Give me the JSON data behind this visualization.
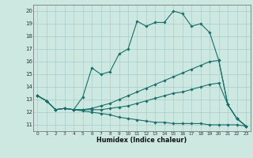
{
  "xlabel": "Humidex (Indice chaleur)",
  "bg_color": "#cce8e0",
  "grid_color": "#aacccc",
  "line_color": "#1a6e6a",
  "line1_y": [
    13.3,
    12.9,
    12.2,
    12.3,
    12.2,
    13.2,
    15.5,
    15.0,
    15.2,
    16.6,
    17.0,
    19.2,
    18.8,
    19.1,
    19.1,
    20.0,
    19.8,
    18.8,
    19.0,
    18.3,
    16.1,
    12.6,
    11.5,
    10.9
  ],
  "line2_y": [
    13.3,
    12.9,
    12.2,
    12.3,
    12.2,
    12.2,
    12.3,
    12.5,
    12.7,
    13.0,
    13.3,
    13.6,
    13.9,
    14.2,
    14.5,
    14.8,
    15.1,
    15.4,
    15.7,
    16.0,
    16.1,
    12.6,
    11.5,
    10.9
  ],
  "line3_y": [
    13.3,
    12.9,
    12.2,
    12.3,
    12.2,
    12.2,
    12.2,
    12.2,
    12.3,
    12.4,
    12.5,
    12.7,
    12.9,
    13.1,
    13.3,
    13.5,
    13.6,
    13.8,
    14.0,
    14.2,
    14.3,
    12.6,
    11.5,
    10.9
  ],
  "line4_y": [
    13.3,
    12.9,
    12.2,
    12.3,
    12.2,
    12.1,
    12.0,
    11.9,
    11.8,
    11.6,
    11.5,
    11.4,
    11.3,
    11.2,
    11.2,
    11.1,
    11.1,
    11.1,
    11.1,
    11.0,
    11.0,
    11.0,
    11.0,
    10.9
  ],
  "x": [
    0,
    1,
    2,
    3,
    4,
    5,
    6,
    7,
    8,
    9,
    10,
    11,
    12,
    13,
    14,
    15,
    16,
    17,
    18,
    19,
    20,
    21,
    22,
    23
  ],
  "xlim": [
    -0.5,
    23.5
  ],
  "ylim": [
    10.5,
    20.5
  ],
  "yticks": [
    11,
    12,
    13,
    14,
    15,
    16,
    17,
    18,
    19,
    20
  ],
  "xticks": [
    0,
    1,
    2,
    3,
    4,
    5,
    6,
    7,
    8,
    9,
    10,
    11,
    12,
    13,
    14,
    15,
    16,
    17,
    18,
    19,
    20,
    21,
    22,
    23
  ]
}
